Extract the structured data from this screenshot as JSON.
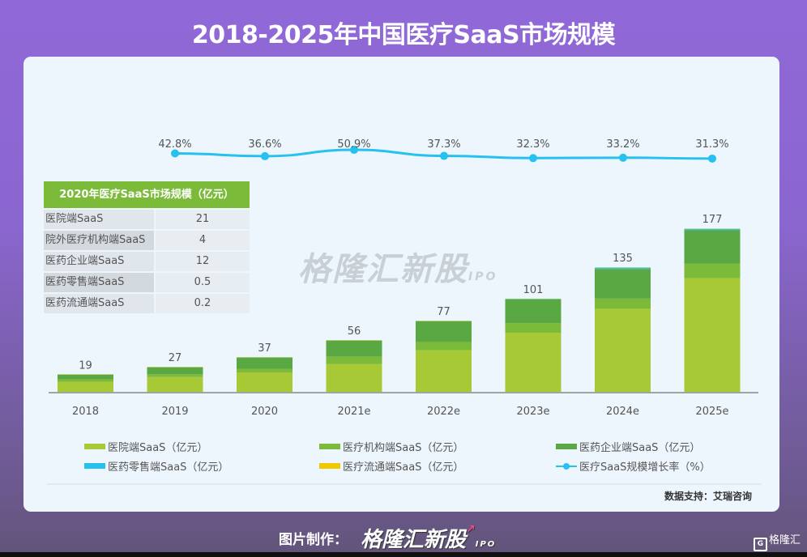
{
  "header": {
    "title": "2018-2025年中国医疗SaaS市场规模"
  },
  "table": {
    "title": "2020年医疗SaaS市场规模（亿元）",
    "rows": [
      {
        "label": "医院端SaaS",
        "value": "21"
      },
      {
        "label": "院外医疗机构端SaaS",
        "value": "4"
      },
      {
        "label": "医药企业端SaaS",
        "value": "12"
      },
      {
        "label": "医药零售端SaaS",
        "value": "0.5"
      },
      {
        "label": "医药流通端SaaS",
        "value": "0.2"
      }
    ]
  },
  "watermark": {
    "text": "格隆汇新股",
    "suffix": "IPO"
  },
  "source": "数据支持：艾瑞咨询",
  "footer": {
    "made_by": "图片制作：",
    "brand": "格隆汇新股",
    "brand_suffix": "IPO",
    "corner_logo": "格隆汇",
    "corner_logo_glyph": "G"
  },
  "legend": [
    {
      "label": "医院端SaaS（亿元）",
      "color": "#a6c935",
      "kind": "bar"
    },
    {
      "label": "医疗机构端SaaS（亿元）",
      "color": "#7cbb3a",
      "kind": "bar"
    },
    {
      "label": "医药企业端SaaS（亿元）",
      "color": "#5aa844",
      "kind": "bar"
    },
    {
      "label": "医药零售端SaaS（亿元）",
      "color": "#27c1ef",
      "kind": "bar"
    },
    {
      "label": "医疗流通端SaaS（亿元）",
      "color": "#f0c800",
      "kind": "bar"
    },
    {
      "label": "医疗SaaS规模增长率（%）",
      "color": "#27c1ef",
      "kind": "line"
    }
  ],
  "chart_data": {
    "type": "bar",
    "stacked": true,
    "title": "2018-2025年中国医疗SaaS市场规模",
    "xlabel": "",
    "ylabel": "",
    "categories": [
      "2018",
      "2019",
      "2020",
      "2021e",
      "2022e",
      "2023e",
      "2024e",
      "2025e"
    ],
    "totals": [
      19,
      27,
      37,
      56,
      77,
      101,
      135,
      177
    ],
    "total_labels": [
      "19",
      "27",
      "37",
      "56",
      "77",
      "101",
      "135",
      "177"
    ],
    "series": [
      {
        "name": "医院端SaaS（亿元）",
        "color": "#a6c935",
        "values": [
          11,
          16,
          21,
          30,
          45,
          64,
          90,
          123
        ]
      },
      {
        "name": "医疗机构端SaaS（亿元）",
        "color": "#7cbb3a",
        "values": [
          2.5,
          3,
          4,
          8,
          9,
          10.5,
          11,
          16
        ]
      },
      {
        "name": "医药企业端SaaS（亿元）",
        "color": "#5aa844",
        "values": [
          5.3,
          7.7,
          12,
          17.5,
          22.5,
          25.5,
          32,
          36
        ]
      },
      {
        "name": "医药零售端SaaS（亿元）",
        "color": "#27c1ef",
        "values": [
          0.15,
          0.2,
          0.5,
          0.4,
          0.4,
          0.8,
          1.5,
          1.5
        ]
      },
      {
        "name": "医疗流通端SaaS（亿元）",
        "color": "#f0c800",
        "values": [
          0.05,
          0.1,
          0.2,
          0.1,
          0.1,
          0.2,
          0.5,
          0.5
        ]
      }
    ],
    "line_series": {
      "name": "医疗SaaS规模增长率（%）",
      "color": "#27c1ef",
      "categories": [
        "2019",
        "2020",
        "2021e",
        "2022e",
        "2023e",
        "2024e",
        "2025e"
      ],
      "values": [
        42.8,
        36.6,
        50.9,
        37.3,
        32.3,
        33.2,
        31.3
      ],
      "labels": [
        "42.8%",
        "36.6%",
        "50.9%",
        "37.3%",
        "32.3%",
        "33.2%",
        "31.3%"
      ]
    },
    "ylim": [
      0,
      180
    ],
    "grid": false,
    "legend_position": "bottom"
  }
}
